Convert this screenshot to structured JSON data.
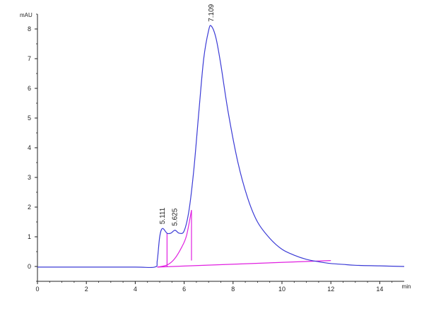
{
  "chart_data": {
    "type": "line",
    "title": "",
    "xlabel": "min",
    "ylabel": "mAU",
    "xlim": [
      0,
      15
    ],
    "ylim": [
      -0.5,
      8.5
    ],
    "grid": false,
    "x_ticks": [
      0,
      2,
      4,
      6,
      8,
      10,
      12,
      14
    ],
    "x_tick_labels": [
      "0",
      "2",
      "4",
      "6",
      "8",
      "10",
      "12",
      "14"
    ],
    "y_ticks": [
      0,
      1,
      2,
      3,
      4,
      5,
      6,
      7,
      8
    ],
    "y_tick_labels": [
      "0",
      "1",
      "2",
      "3",
      "4",
      "5",
      "6",
      "7",
      "8"
    ],
    "colors": {
      "signal": "#3b3bd6",
      "integration": "#e020e0",
      "axis": "#222222"
    },
    "series": [
      {
        "x": [
          0,
          2,
          4,
          4.8,
          4.9,
          5.0,
          5.111,
          5.3,
          5.45,
          5.625,
          5.8,
          6.0,
          6.2,
          6.4,
          6.6,
          6.8,
          7.0,
          7.109,
          7.3,
          7.5,
          7.8,
          8.2,
          8.6,
          9.0,
          9.5,
          10.0,
          10.5,
          11.0,
          11.5,
          12.0,
          12.5,
          13.0,
          14.0,
          15.0
        ],
        "y": [
          -0.02,
          -0.02,
          -0.02,
          -0.02,
          0.2,
          1.0,
          1.28,
          1.12,
          1.12,
          1.22,
          1.12,
          1.2,
          1.9,
          3.3,
          5.2,
          7.0,
          7.95,
          8.1,
          7.7,
          6.8,
          5.2,
          3.5,
          2.3,
          1.5,
          0.95,
          0.58,
          0.38,
          0.24,
          0.16,
          0.1,
          0.07,
          0.04,
          0.02,
          0.0
        ]
      }
    ],
    "integration": {
      "baseline": {
        "x": [
          4.9,
          12.0
        ],
        "y": [
          -0.02,
          0.2
        ]
      },
      "drop_lines": [
        {
          "x": 5.3,
          "y": [
            -0.02,
            1.12
          ]
        },
        {
          "x": 6.3,
          "y": [
            0.2,
            1.9
          ]
        }
      ],
      "skim_curve": {
        "x": [
          4.9,
          5.3,
          5.6,
          5.9,
          6.1,
          6.3
        ],
        "y": [
          -0.02,
          0.05,
          0.25,
          0.65,
          1.05,
          1.9
        ]
      }
    },
    "peaks": [
      {
        "rt": 5.111,
        "label": "5.111"
      },
      {
        "rt": 5.625,
        "label": "5.625"
      },
      {
        "rt": 7.109,
        "label": "7.109"
      }
    ]
  }
}
